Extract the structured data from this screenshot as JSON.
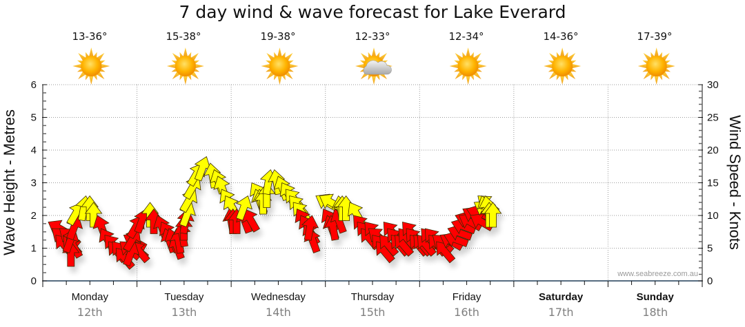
{
  "title": "7 day wind & wave forecast for Lake Everard",
  "credit": "www.seabreeze.com.au",
  "colors": {
    "strong_wind": "#ffff00",
    "light_wind": "#ff0000",
    "arrow_stroke": "#3a2a00",
    "grid": "#999999",
    "axis": "#1f3b57"
  },
  "days": [
    {
      "day": "Monday",
      "date": "12th",
      "temp": "13-36°",
      "icon": "sunny-icon",
      "bold": false
    },
    {
      "day": "Tuesday",
      "date": "13th",
      "temp": "15-38°",
      "icon": "sunny-icon",
      "bold": false
    },
    {
      "day": "Wednesday",
      "date": "14th",
      "temp": "19-38°",
      "icon": "sunny-icon",
      "bold": false
    },
    {
      "day": "Thursday",
      "date": "15th",
      "temp": "12-33°",
      "icon": "partly-cloudy-icon",
      "bold": false
    },
    {
      "day": "Friday",
      "date": "16th",
      "temp": "12-34°",
      "icon": "sunny-icon",
      "bold": false
    },
    {
      "day": "Saturday",
      "date": "17th",
      "temp": "14-36°",
      "icon": "sunny-icon",
      "bold": true
    },
    {
      "day": "Sunday",
      "date": "18th",
      "temp": "17-39°",
      "icon": "sunny-icon",
      "bold": true
    }
  ],
  "chart_data": {
    "type": "scatter",
    "title": "7 day wind & wave forecast for Lake Everard",
    "ylabel": "Wave Height - Metres",
    "y2label": "Wind Speed - Knots",
    "ylim": [
      0,
      6
    ],
    "y2lim": [
      0,
      30
    ],
    "yticks": [
      "0",
      "1",
      "2",
      "3",
      "4",
      "5",
      "6"
    ],
    "y2ticks": [
      "0",
      "5",
      "10",
      "15",
      "20",
      "25",
      "30"
    ],
    "grid": true,
    "x_categories": [
      "Monday 12th",
      "Tuesday 13th",
      "Wednesday 14th",
      "Thursday 15th",
      "Friday 16th",
      "Saturday 17th",
      "Sunday 18th"
    ],
    "color_rule": "yellow arrows at >= 12 knots, red arrows below",
    "series": [
      {
        "name": "Wind (knots, direction arrow points toward in degrees clockwise from up)",
        "points": [
          {
            "t": 0.0,
            "knots": 9,
            "dir": 300
          },
          {
            "t": 0.04,
            "knots": 8,
            "dir": 310
          },
          {
            "t": 0.08,
            "knots": 7,
            "dir": 320
          },
          {
            "t": 0.12,
            "knots": 8,
            "dir": 310
          },
          {
            "t": 0.16,
            "knots": 7,
            "dir": 320
          },
          {
            "t": 0.2,
            "knots": 7,
            "dir": 330
          },
          {
            "t": 0.24,
            "knots": 6,
            "dir": 0
          },
          {
            "t": 0.28,
            "knots": 8,
            "dir": 20
          },
          {
            "t": 0.32,
            "knots": 10,
            "dir": 20
          },
          {
            "t": 0.36,
            "knots": 12,
            "dir": 30
          },
          {
            "t": 0.4,
            "knots": 13,
            "dir": 10
          },
          {
            "t": 0.44,
            "knots": 13,
            "dir": 0
          },
          {
            "t": 0.48,
            "knots": 12,
            "dir": 0
          },
          {
            "t": 0.52,
            "knots": 10,
            "dir": 340
          },
          {
            "t": 0.56,
            "knots": 8,
            "dir": 330
          },
          {
            "t": 0.6,
            "knots": 7,
            "dir": 320
          },
          {
            "t": 0.64,
            "knots": 6,
            "dir": 320
          },
          {
            "t": 0.68,
            "knots": 6,
            "dir": 320
          },
          {
            "t": 0.72,
            "knots": 5,
            "dir": 320
          },
          {
            "t": 0.76,
            "knots": 6,
            "dir": 310
          },
          {
            "t": 0.8,
            "knots": 7,
            "dir": 300
          },
          {
            "t": 0.84,
            "knots": 6,
            "dir": 310
          },
          {
            "t": 0.88,
            "knots": 6,
            "dir": 320
          },
          {
            "t": 0.92,
            "knots": 6,
            "dir": 20
          },
          {
            "t": 0.96,
            "knots": 8,
            "dir": 30
          },
          {
            "t": 1.0,
            "knots": 10,
            "dir": 30
          },
          {
            "t": 1.04,
            "knots": 11,
            "dir": 20
          },
          {
            "t": 1.08,
            "knots": 12,
            "dir": 0
          },
          {
            "t": 1.12,
            "knots": 11,
            "dir": 0
          },
          {
            "t": 1.16,
            "knots": 10,
            "dir": 340
          },
          {
            "t": 1.2,
            "knots": 9,
            "dir": 330
          },
          {
            "t": 1.24,
            "knots": 8,
            "dir": 340
          },
          {
            "t": 1.28,
            "knots": 8,
            "dir": 340
          },
          {
            "t": 1.32,
            "knots": 7,
            "dir": 340
          },
          {
            "t": 1.36,
            "knots": 8,
            "dir": 350
          },
          {
            "t": 1.4,
            "knots": 9,
            "dir": 350
          },
          {
            "t": 1.44,
            "knots": 10,
            "dir": 0
          },
          {
            "t": 1.48,
            "knots": 11,
            "dir": 10
          },
          {
            "t": 1.52,
            "knots": 12,
            "dir": 20
          },
          {
            "t": 1.56,
            "knots": 14,
            "dir": 30
          },
          {
            "t": 1.6,
            "knots": 16,
            "dir": 30
          },
          {
            "t": 1.64,
            "knots": 18,
            "dir": 30
          },
          {
            "t": 1.68,
            "knots": 19,
            "dir": 20
          },
          {
            "t": 1.72,
            "knots": 18,
            "dir": 350
          },
          {
            "t": 1.76,
            "knots": 17,
            "dir": 340
          },
          {
            "t": 1.8,
            "knots": 16,
            "dir": 340
          },
          {
            "t": 1.84,
            "knots": 14,
            "dir": 330
          },
          {
            "t": 1.88,
            "knots": 13,
            "dir": 330
          },
          {
            "t": 1.92,
            "knots": 11,
            "dir": 350
          },
          {
            "t": 1.96,
            "knots": 11,
            "dir": 0
          },
          {
            "t": 2.0,
            "knots": 11,
            "dir": 0
          },
          {
            "t": 2.04,
            "knots": 11,
            "dir": 340
          },
          {
            "t": 2.08,
            "knots": 11,
            "dir": 330
          },
          {
            "t": 2.12,
            "knots": 13,
            "dir": 20
          },
          {
            "t": 2.16,
            "knots": 15,
            "dir": 330
          },
          {
            "t": 2.2,
            "knots": 14,
            "dir": 340
          },
          {
            "t": 2.24,
            "knots": 14,
            "dir": 350
          },
          {
            "t": 2.28,
            "knots": 14,
            "dir": 0
          },
          {
            "t": 2.32,
            "knots": 15,
            "dir": 0
          },
          {
            "t": 2.36,
            "knots": 17,
            "dir": 10
          },
          {
            "t": 2.4,
            "knots": 17,
            "dir": 350
          },
          {
            "t": 2.44,
            "knots": 16,
            "dir": 340
          },
          {
            "t": 2.48,
            "knots": 15,
            "dir": 330
          },
          {
            "t": 2.52,
            "knots": 14,
            "dir": 320
          },
          {
            "t": 2.56,
            "knots": 13,
            "dir": 320
          },
          {
            "t": 2.6,
            "knots": 12,
            "dir": 320
          },
          {
            "t": 2.64,
            "knots": 11,
            "dir": 330
          },
          {
            "t": 2.68,
            "knots": 10,
            "dir": 330
          },
          {
            "t": 2.72,
            "knots": 9,
            "dir": 330
          },
          {
            "t": 2.76,
            "knots": 8,
            "dir": 340
          },
          {
            "t": 2.8,
            "knots": 10,
            "dir": 10
          },
          {
            "t": 2.84,
            "knots": 13,
            "dir": 300
          },
          {
            "t": 2.88,
            "knots": 13,
            "dir": 300
          },
          {
            "t": 2.92,
            "knots": 11,
            "dir": 330
          },
          {
            "t": 2.96,
            "knots": 10,
            "dir": 340
          },
          {
            "t": 3.0,
            "knots": 10,
            "dir": 350
          },
          {
            "t": 3.04,
            "knots": 11,
            "dir": 340
          },
          {
            "t": 3.08,
            "knots": 13,
            "dir": 350
          },
          {
            "t": 3.12,
            "knots": 13,
            "dir": 0
          },
          {
            "t": 3.16,
            "knots": 13,
            "dir": 0
          },
          {
            "t": 3.2,
            "knots": 12,
            "dir": 330
          },
          {
            "t": 3.24,
            "knots": 10,
            "dir": 320
          },
          {
            "t": 3.28,
            "knots": 9,
            "dir": 320
          },
          {
            "t": 3.32,
            "knots": 8,
            "dir": 320
          },
          {
            "t": 3.36,
            "knots": 9,
            "dir": 320
          },
          {
            "t": 3.4,
            "knots": 8,
            "dir": 310
          },
          {
            "t": 3.44,
            "knots": 7,
            "dir": 320
          },
          {
            "t": 3.48,
            "knots": 6,
            "dir": 320
          },
          {
            "t": 3.52,
            "knots": 7,
            "dir": 320
          },
          {
            "t": 3.56,
            "knots": 9,
            "dir": 320
          },
          {
            "t": 3.6,
            "knots": 8,
            "dir": 320
          },
          {
            "t": 3.64,
            "knots": 7,
            "dir": 320
          },
          {
            "t": 3.68,
            "knots": 7,
            "dir": 320
          },
          {
            "t": 3.72,
            "knots": 8,
            "dir": 320
          },
          {
            "t": 3.76,
            "knots": 9,
            "dir": 320
          },
          {
            "t": 3.8,
            "knots": 8,
            "dir": 320
          },
          {
            "t": 3.84,
            "knots": 7,
            "dir": 320
          },
          {
            "t": 3.88,
            "knots": 7,
            "dir": 320
          },
          {
            "t": 3.92,
            "knots": 7,
            "dir": 320
          },
          {
            "t": 3.96,
            "knots": 8,
            "dir": 320
          },
          {
            "t": 4.0,
            "knots": 8,
            "dir": 320
          },
          {
            "t": 4.04,
            "knots": 7,
            "dir": 320
          },
          {
            "t": 4.08,
            "knots": 7,
            "dir": 310
          },
          {
            "t": 4.12,
            "knots": 6,
            "dir": 320
          },
          {
            "t": 4.16,
            "knots": 7,
            "dir": 300
          },
          {
            "t": 4.2,
            "knots": 7,
            "dir": 290
          },
          {
            "t": 4.24,
            "knots": 8,
            "dir": 290
          },
          {
            "t": 4.28,
            "knots": 9,
            "dir": 290
          },
          {
            "t": 4.32,
            "knots": 10,
            "dir": 290
          },
          {
            "t": 4.36,
            "knots": 10,
            "dir": 300
          },
          {
            "t": 4.4,
            "knots": 11,
            "dir": 300
          },
          {
            "t": 4.44,
            "knots": 11,
            "dir": 290
          },
          {
            "t": 4.48,
            "knots": 10,
            "dir": 300
          },
          {
            "t": 4.52,
            "knots": 12,
            "dir": 300
          },
          {
            "t": 4.56,
            "knots": 13,
            "dir": 310
          },
          {
            "t": 4.6,
            "knots": 13,
            "dir": 340
          },
          {
            "t": 4.64,
            "knots": 13,
            "dir": 350
          },
          {
            "t": 4.68,
            "knots": 12,
            "dir": 0
          },
          {
            "t": 4.72,
            "knots": 12,
            "dir": 0
          }
        ]
      }
    ]
  }
}
